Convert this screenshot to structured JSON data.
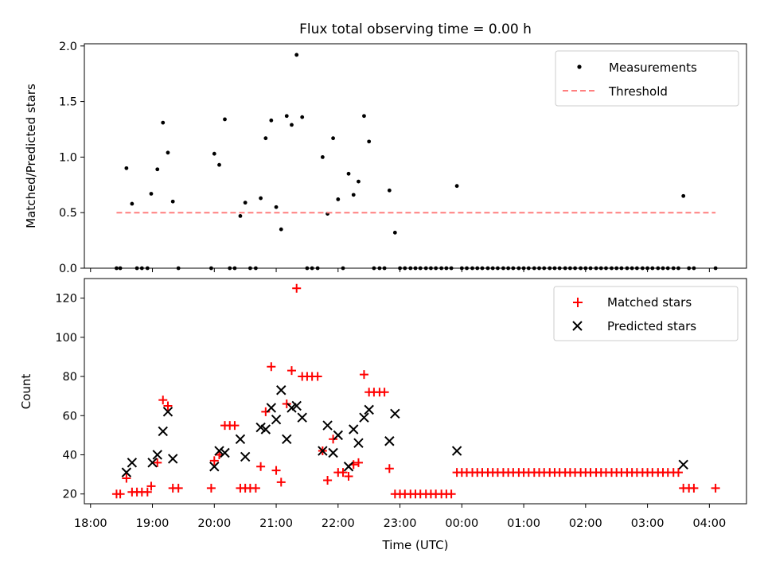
{
  "chart_data": [
    {
      "type": "scatter",
      "title": "Flux total observing time = 0.00 h",
      "ylabel": "Matched/Predicted stars",
      "xlim": [
        17.9,
        28.6
      ],
      "ylim": [
        0,
        2.02
      ],
      "yticks": [
        "0.0",
        "0.5",
        "1.0",
        "1.5",
        "2.0"
      ],
      "grid": false,
      "legend_position": "top-right",
      "series": [
        {
          "name": "Measurements",
          "color": "#000000",
          "marker": "dot",
          "points": [
            [
              18.42,
              0.0
            ],
            [
              18.48,
              0.0
            ],
            [
              18.58,
              0.9
            ],
            [
              18.67,
              0.58
            ],
            [
              18.75,
              0.0
            ],
            [
              18.83,
              0.0
            ],
            [
              18.92,
              0.0
            ],
            [
              18.98,
              0.67
            ],
            [
              19.08,
              0.89
            ],
            [
              19.17,
              1.31
            ],
            [
              19.25,
              1.04
            ],
            [
              19.33,
              0.6
            ],
            [
              19.42,
              0.0
            ],
            [
              19.95,
              0.0
            ],
            [
              20.0,
              1.03
            ],
            [
              20.08,
              0.93
            ],
            [
              20.17,
              1.34
            ],
            [
              20.25,
              0.0
            ],
            [
              20.33,
              0.0
            ],
            [
              20.42,
              0.47
            ],
            [
              20.5,
              0.59
            ],
            [
              20.58,
              0.0
            ],
            [
              20.67,
              0.0
            ],
            [
              20.75,
              0.63
            ],
            [
              20.83,
              1.17
            ],
            [
              20.92,
              1.33
            ],
            [
              21.0,
              0.55
            ],
            [
              21.08,
              0.35
            ],
            [
              21.17,
              1.37
            ],
            [
              21.25,
              1.29
            ],
            [
              21.33,
              1.92
            ],
            [
              21.42,
              1.36
            ],
            [
              21.5,
              0.0
            ],
            [
              21.58,
              0.0
            ],
            [
              21.67,
              0.0
            ],
            [
              21.75,
              1.0
            ],
            [
              21.83,
              0.49
            ],
            [
              21.92,
              1.17
            ],
            [
              22.0,
              0.62
            ],
            [
              22.08,
              0.0
            ],
            [
              22.17,
              0.85
            ],
            [
              22.25,
              0.66
            ],
            [
              22.33,
              0.78
            ],
            [
              22.42,
              1.37
            ],
            [
              22.5,
              1.14
            ],
            [
              22.58,
              0.0
            ],
            [
              22.67,
              0.0
            ],
            [
              22.75,
              0.0
            ],
            [
              22.83,
              0.7
            ],
            [
              22.92,
              0.32
            ],
            [
              23.0,
              0.0
            ],
            [
              23.08,
              0.0
            ],
            [
              23.17,
              0.0
            ],
            [
              23.25,
              0.0
            ],
            [
              23.33,
              0.0
            ],
            [
              23.42,
              0.0
            ],
            [
              23.5,
              0.0
            ],
            [
              23.58,
              0.0
            ],
            [
              23.67,
              0.0
            ],
            [
              23.75,
              0.0
            ],
            [
              23.83,
              0.0
            ],
            [
              23.92,
              0.74
            ],
            [
              24.0,
              0.0
            ],
            [
              24.08,
              0.0
            ],
            [
              24.17,
              0.0
            ],
            [
              24.25,
              0.0
            ],
            [
              24.33,
              0.0
            ],
            [
              24.42,
              0.0
            ],
            [
              24.5,
              0.0
            ],
            [
              24.58,
              0.0
            ],
            [
              24.67,
              0.0
            ],
            [
              24.75,
              0.0
            ],
            [
              24.83,
              0.0
            ],
            [
              24.92,
              0.0
            ],
            [
              25.0,
              0.0
            ],
            [
              25.08,
              0.0
            ],
            [
              25.17,
              0.0
            ],
            [
              25.25,
              0.0
            ],
            [
              25.33,
              0.0
            ],
            [
              25.42,
              0.0
            ],
            [
              25.5,
              0.0
            ],
            [
              25.58,
              0.0
            ],
            [
              25.67,
              0.0
            ],
            [
              25.75,
              0.0
            ],
            [
              25.83,
              0.0
            ],
            [
              25.92,
              0.0
            ],
            [
              26.0,
              0.0
            ],
            [
              26.08,
              0.0
            ],
            [
              26.17,
              0.0
            ],
            [
              26.25,
              0.0
            ],
            [
              26.33,
              0.0
            ],
            [
              26.42,
              0.0
            ],
            [
              26.5,
              0.0
            ],
            [
              26.58,
              0.0
            ],
            [
              26.67,
              0.0
            ],
            [
              26.75,
              0.0
            ],
            [
              26.83,
              0.0
            ],
            [
              26.92,
              0.0
            ],
            [
              27.0,
              0.0
            ],
            [
              27.08,
              0.0
            ],
            [
              27.17,
              0.0
            ],
            [
              27.25,
              0.0
            ],
            [
              27.33,
              0.0
            ],
            [
              27.42,
              0.0
            ],
            [
              27.5,
              0.0
            ],
            [
              27.58,
              0.65
            ],
            [
              27.67,
              0.0
            ],
            [
              27.75,
              0.0
            ],
            [
              28.1,
              0.0
            ]
          ]
        },
        {
          "name": "Threshold",
          "color": "#ff7f7f",
          "style": "dashed",
          "points": [
            [
              18.42,
              0.5
            ],
            [
              28.1,
              0.5
            ]
          ]
        }
      ]
    },
    {
      "type": "scatter",
      "xlabel": "Time (UTC)",
      "ylabel": "Count",
      "xlim": [
        17.9,
        28.6
      ],
      "ylim": [
        15,
        130
      ],
      "yticks": [
        "20",
        "40",
        "60",
        "80",
        "100",
        "120"
      ],
      "xticks": [
        "18:00",
        "19:00",
        "20:00",
        "21:00",
        "22:00",
        "23:00",
        "00:00",
        "01:00",
        "02:00",
        "03:00",
        "04:00"
      ],
      "grid": false,
      "legend_position": "top-right",
      "series": [
        {
          "name": "Matched stars",
          "color": "#ff0000",
          "marker": "plus",
          "points": [
            [
              18.42,
              20
            ],
            [
              18.48,
              20
            ],
            [
              18.58,
              28
            ],
            [
              18.67,
              21
            ],
            [
              18.75,
              21
            ],
            [
              18.83,
              21
            ],
            [
              18.92,
              21
            ],
            [
              18.98,
              24
            ],
            [
              19.08,
              36
            ],
            [
              19.17,
              68
            ],
            [
              19.25,
              65
            ],
            [
              19.33,
              23
            ],
            [
              19.42,
              23
            ],
            [
              19.95,
              23
            ],
            [
              20.0,
              37
            ],
            [
              20.08,
              40
            ],
            [
              20.17,
              55
            ],
            [
              20.25,
              55
            ],
            [
              20.33,
              55
            ],
            [
              20.42,
              23
            ],
            [
              20.5,
              23
            ],
            [
              20.58,
              23
            ],
            [
              20.67,
              23
            ],
            [
              20.75,
              34
            ],
            [
              20.83,
              62
            ],
            [
              20.92,
              85
            ],
            [
              21.0,
              32
            ],
            [
              21.08,
              26
            ],
            [
              21.17,
              66
            ],
            [
              21.25,
              83
            ],
            [
              21.33,
              125
            ],
            [
              21.42,
              80
            ],
            [
              21.5,
              80
            ],
            [
              21.58,
              80
            ],
            [
              21.67,
              80
            ],
            [
              21.75,
              42
            ],
            [
              21.83,
              27
            ],
            [
              21.92,
              48
            ],
            [
              22.0,
              31
            ],
            [
              22.08,
              31
            ],
            [
              22.17,
              29
            ],
            [
              22.25,
              35
            ],
            [
              22.33,
              36
            ],
            [
              22.42,
              81
            ],
            [
              22.5,
              72
            ],
            [
              22.58,
              72
            ],
            [
              22.67,
              72
            ],
            [
              22.75,
              72
            ],
            [
              22.83,
              33
            ],
            [
              22.92,
              20
            ],
            [
              23.0,
              20
            ],
            [
              23.08,
              20
            ],
            [
              23.17,
              20
            ],
            [
              23.25,
              20
            ],
            [
              23.33,
              20
            ],
            [
              23.42,
              20
            ],
            [
              23.5,
              20
            ],
            [
              23.58,
              20
            ],
            [
              23.67,
              20
            ],
            [
              23.75,
              20
            ],
            [
              23.83,
              20
            ],
            [
              23.92,
              31
            ],
            [
              24.0,
              31
            ],
            [
              24.08,
              31
            ],
            [
              24.17,
              31
            ],
            [
              24.25,
              31
            ],
            [
              24.33,
              31
            ],
            [
              24.42,
              31
            ],
            [
              24.5,
              31
            ],
            [
              24.58,
              31
            ],
            [
              24.67,
              31
            ],
            [
              24.75,
              31
            ],
            [
              24.83,
              31
            ],
            [
              24.92,
              31
            ],
            [
              25.0,
              31
            ],
            [
              25.08,
              31
            ],
            [
              25.17,
              31
            ],
            [
              25.25,
              31
            ],
            [
              25.33,
              31
            ],
            [
              25.42,
              31
            ],
            [
              25.5,
              31
            ],
            [
              25.58,
              31
            ],
            [
              25.67,
              31
            ],
            [
              25.75,
              31
            ],
            [
              25.83,
              31
            ],
            [
              25.92,
              31
            ],
            [
              26.0,
              31
            ],
            [
              26.08,
              31
            ],
            [
              26.17,
              31
            ],
            [
              26.25,
              31
            ],
            [
              26.33,
              31
            ],
            [
              26.42,
              31
            ],
            [
              26.5,
              31
            ],
            [
              26.58,
              31
            ],
            [
              26.67,
              31
            ],
            [
              26.75,
              31
            ],
            [
              26.83,
              31
            ],
            [
              26.92,
              31
            ],
            [
              27.0,
              31
            ],
            [
              27.08,
              31
            ],
            [
              27.17,
              31
            ],
            [
              27.25,
              31
            ],
            [
              27.33,
              31
            ],
            [
              27.42,
              31
            ],
            [
              27.5,
              31
            ],
            [
              27.58,
              23
            ],
            [
              27.67,
              23
            ],
            [
              27.75,
              23
            ],
            [
              28.1,
              23
            ]
          ]
        },
        {
          "name": "Predicted stars",
          "color": "#000000",
          "marker": "x",
          "points": [
            [
              18.58,
              31
            ],
            [
              18.67,
              36
            ],
            [
              19.0,
              36
            ],
            [
              19.08,
              40
            ],
            [
              19.17,
              52
            ],
            [
              19.25,
              62
            ],
            [
              19.33,
              38
            ],
            [
              20.0,
              34
            ],
            [
              20.08,
              42
            ],
            [
              20.17,
              41
            ],
            [
              20.42,
              48
            ],
            [
              20.5,
              39
            ],
            [
              20.75,
              54
            ],
            [
              20.83,
              53
            ],
            [
              20.92,
              64
            ],
            [
              21.0,
              58
            ],
            [
              21.08,
              73
            ],
            [
              21.17,
              48
            ],
            [
              21.25,
              64
            ],
            [
              21.33,
              65
            ],
            [
              21.42,
              59
            ],
            [
              21.75,
              42
            ],
            [
              21.83,
              55
            ],
            [
              21.92,
              41
            ],
            [
              22.0,
              50
            ],
            [
              22.17,
              34
            ],
            [
              22.25,
              53
            ],
            [
              22.33,
              46
            ],
            [
              22.42,
              59
            ],
            [
              22.5,
              63
            ],
            [
              22.83,
              47
            ],
            [
              22.92,
              61
            ],
            [
              23.92,
              42
            ],
            [
              27.58,
              35
            ]
          ]
        }
      ]
    }
  ]
}
